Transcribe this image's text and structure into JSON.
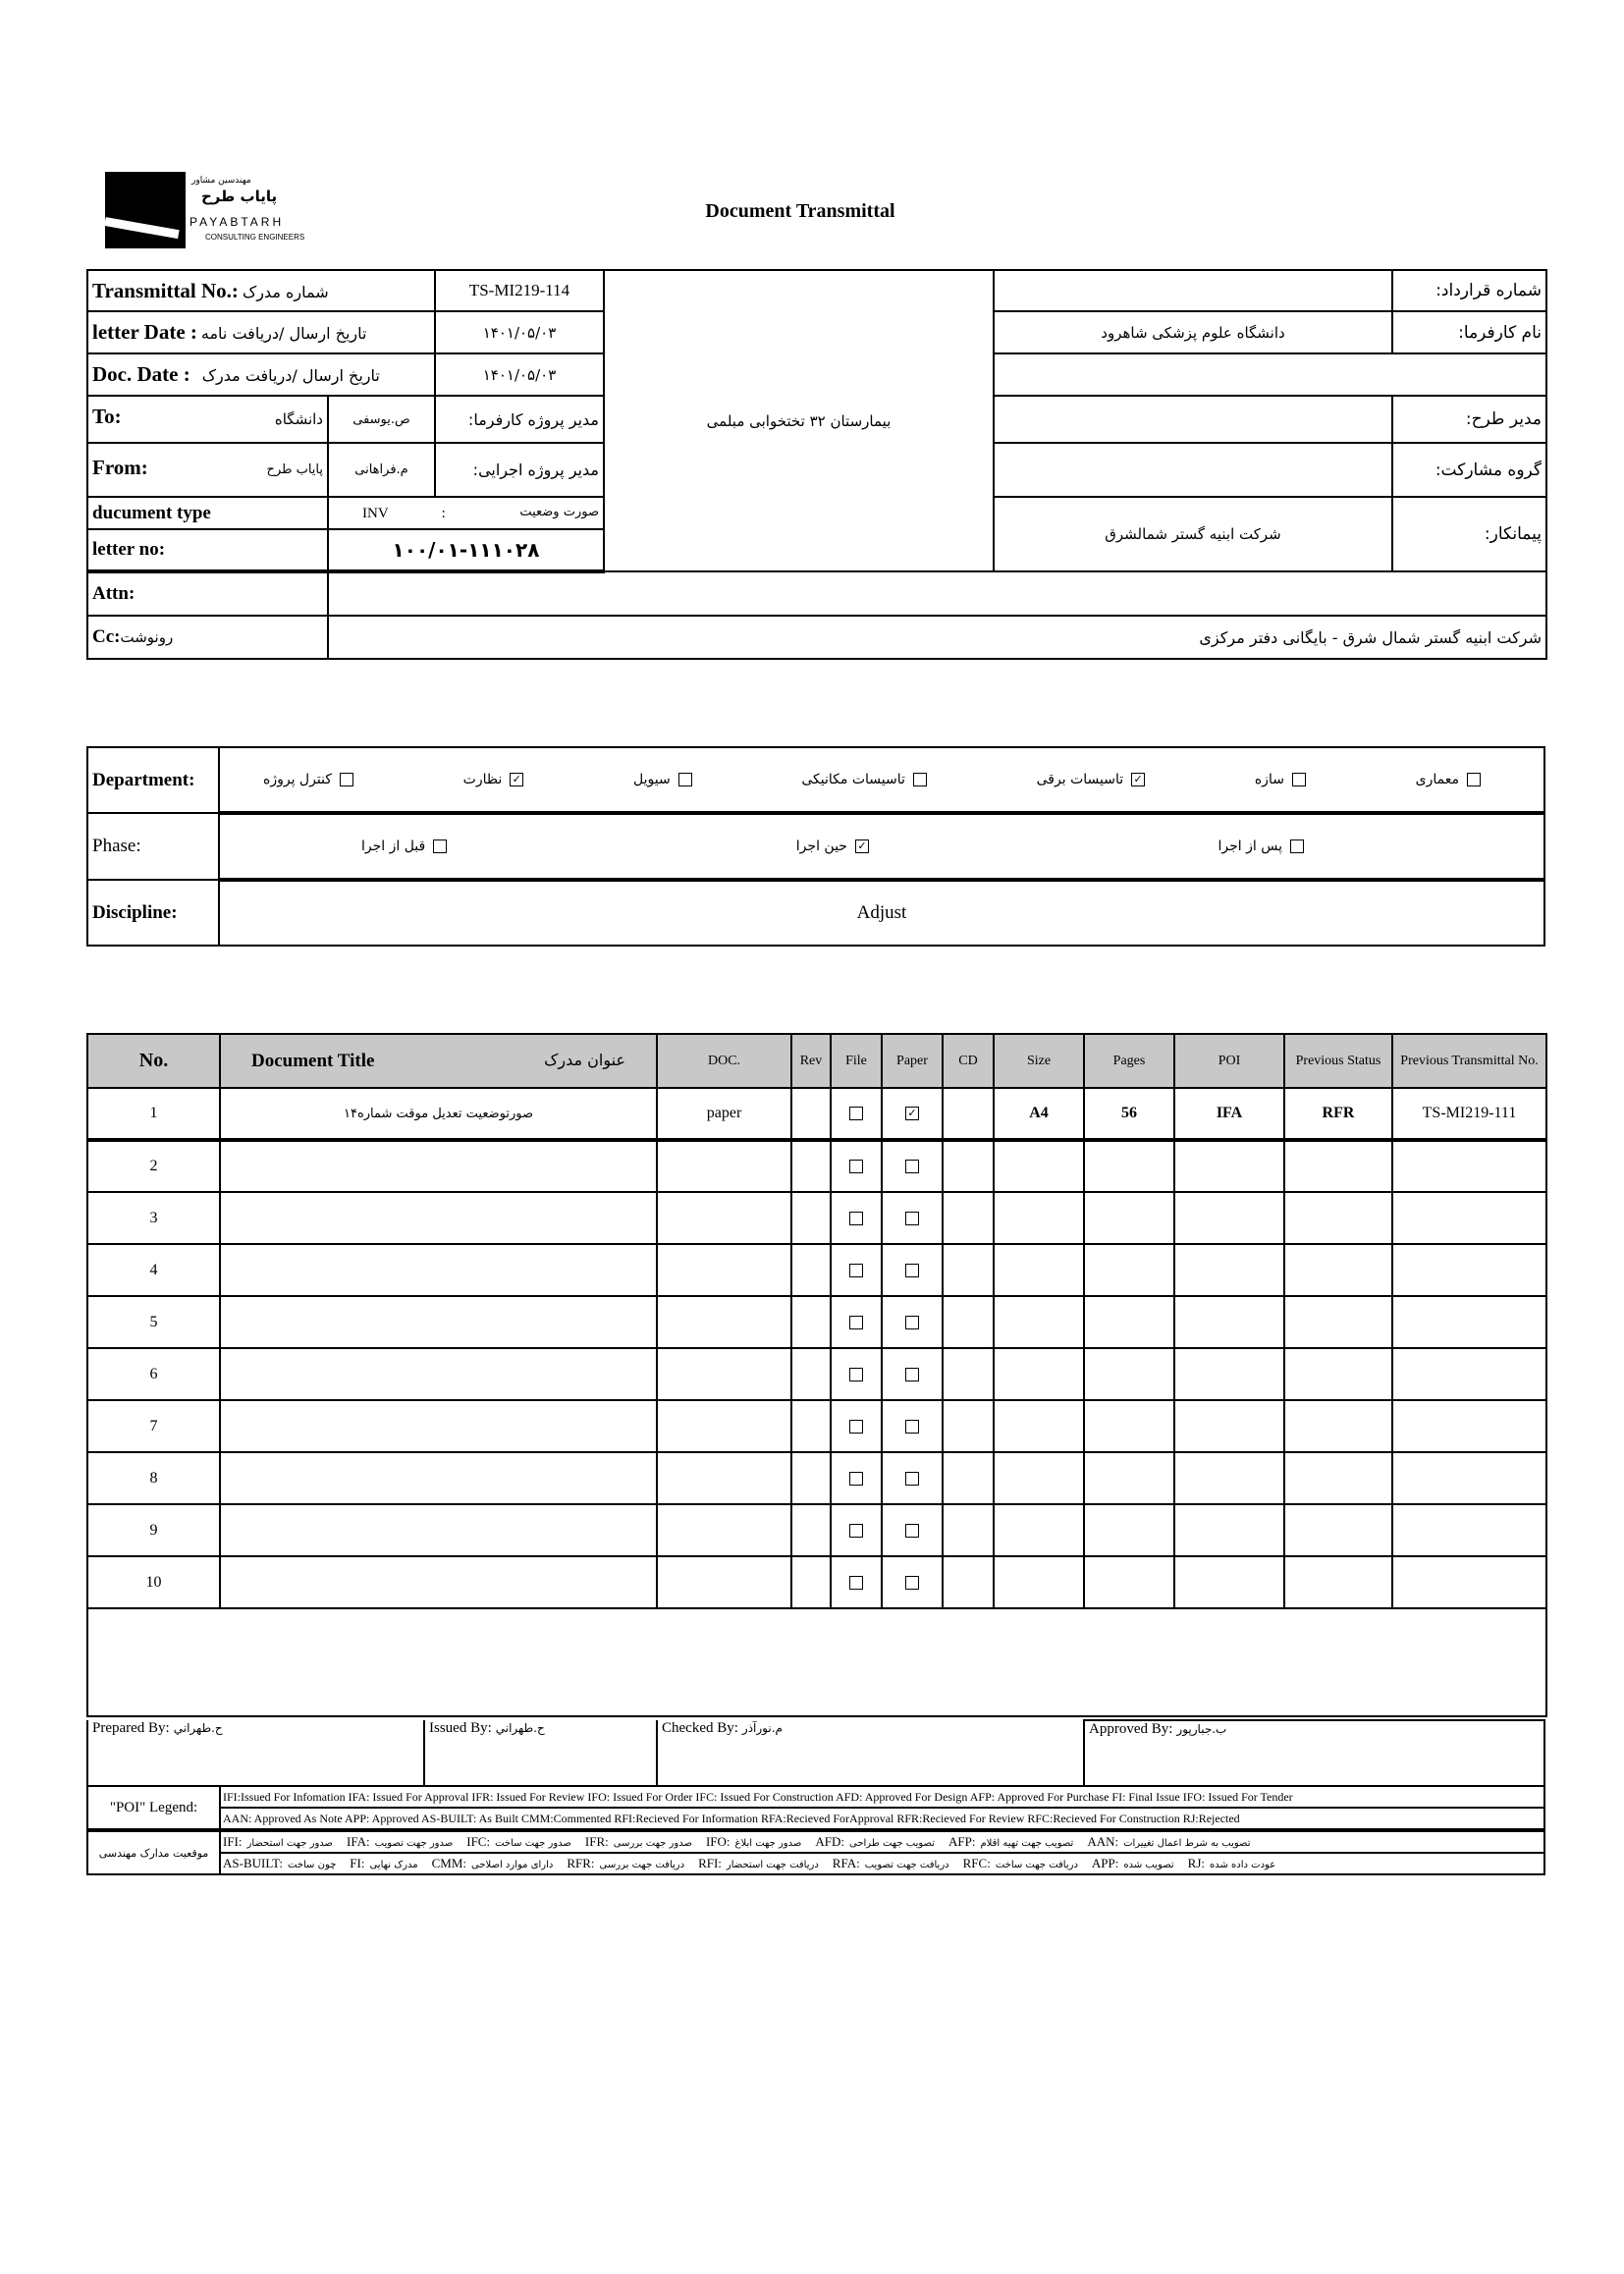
{
  "header": {
    "logo_fa_top": "مهندسین مشاور",
    "logo_fa": "پایاب طرح",
    "logo_en": "PAYABTARH",
    "logo_sub": "CONSULTING ENGINEERS",
    "title": "Document Transmittal"
  },
  "info": {
    "transmittal_label": "Transmittal No.:",
    "transmittal_label_fa": "شماره مدرک",
    "transmittal_value": "TS-MI219-114",
    "letter_date_label": "letter Date :",
    "letter_date_label_fa": "تاریخ ارسال /دریافت نامه",
    "letter_date_value": "۱۴۰۱/۰۵/۰۳",
    "doc_date_label": "Doc. Date :",
    "doc_date_label_fa": "تاریخ ارسال /دریافت مدرک",
    "doc_date_value": "۱۴۰۱/۰۵/۰۳",
    "to_label": "To:",
    "to_value": "دانشگاه",
    "to_person": "ص.یوسفی",
    "to_role": "مدیر پروژه کارفرما:",
    "from_label": "From:",
    "from_value": "پایاب طرح",
    "from_person": "م.فراهانی",
    "from_role": "مدیر پروژه اجرایی:",
    "doctype_label": "ducument type",
    "doctype_code": "INV",
    "doctype_sep": ":",
    "doctype_fa": "صورت وضعیت",
    "letter_no_label": "letter no:",
    "letter_no_value": "۱۰۰/۰۱-۱۱۱۰۲۸",
    "project": "بیمارستان ۳۲ تختخوابی مبلمی",
    "contract_label": "شماره قرارداد:",
    "contract_value": "",
    "employer_label": "نام کارفرما:",
    "employer_value": "دانشگاه علوم پزشکی شاهرود",
    "pm_label": "مدیر طرح:",
    "pm_value": "",
    "partner_label": "گروه مشارکت:",
    "partner_value": "",
    "contractor_label": "پیمانکار:",
    "contractor_value": "شرکت ابنیه گستر شمالشرق",
    "attn_label": "Attn:",
    "attn_value": "",
    "cc_label": "Cc:",
    "cc_label_fa": "رونوشت",
    "cc_value": "شرکت ابنیه گستر شمال شرق - بایگانی دفتر مرکزی"
  },
  "classification": {
    "department_label": "Department:",
    "departments": [
      {
        "label": "معماری",
        "checked": false
      },
      {
        "label": "سازه",
        "checked": false
      },
      {
        "label": "تاسیسات برقی",
        "checked": true
      },
      {
        "label": "تاسیسات مکانیکی",
        "checked": false
      },
      {
        "label": "سیویل",
        "checked": false
      },
      {
        "label": "نظارت",
        "checked": true
      },
      {
        "label": "کنترل پروژه",
        "checked": false
      }
    ],
    "phase_label": "Phase:",
    "phases": [
      {
        "label": "پس از اجرا",
        "checked": false
      },
      {
        "label": "حین اجرا",
        "checked": true
      },
      {
        "label": "قبل از اجرا",
        "checked": false
      }
    ],
    "discipline_label": "Discipline:",
    "discipline_value": "Adjust"
  },
  "documents": {
    "headers": {
      "no": "No.",
      "title_en": "Document Title",
      "title_fa": "عنوان مدرک",
      "doc": "DOC.",
      "rev": "Rev",
      "file": "File",
      "paper": "Paper",
      "cd": "CD",
      "size": "Size",
      "pages": "Pages",
      "poi": "POI",
      "prev_status": "Previous Status",
      "prev_transmittal": "Previous Transmittal No."
    },
    "rows": [
      {
        "no": "1",
        "title": "صورتوضعیت تعدیل موقت شماره۱۴",
        "doc": "paper",
        "rev": "",
        "file": false,
        "paper": true,
        "cd": "",
        "size": "A4",
        "pages": "56",
        "poi": "IFA",
        "prev_status": "RFR",
        "prev_transmittal": "TS-MI219-111"
      },
      {
        "no": "2",
        "title": "",
        "doc": "",
        "rev": "",
        "file": false,
        "paper": false,
        "cd": "",
        "size": "",
        "pages": "",
        "poi": "",
        "prev_status": "",
        "prev_transmittal": ""
      },
      {
        "no": "3",
        "title": "",
        "doc": "",
        "rev": "",
        "file": false,
        "paper": false,
        "cd": "",
        "size": "",
        "pages": "",
        "poi": "",
        "prev_status": "",
        "prev_transmittal": ""
      },
      {
        "no": "4",
        "title": "",
        "doc": "",
        "rev": "",
        "file": false,
        "paper": false,
        "cd": "",
        "size": "",
        "pages": "",
        "poi": "",
        "prev_status": "",
        "prev_transmittal": ""
      },
      {
        "no": "5",
        "title": "",
        "doc": "",
        "rev": "",
        "file": false,
        "paper": false,
        "cd": "",
        "size": "",
        "pages": "",
        "poi": "",
        "prev_status": "",
        "prev_transmittal": ""
      },
      {
        "no": "6",
        "title": "",
        "doc": "",
        "rev": "",
        "file": false,
        "paper": false,
        "cd": "",
        "size": "",
        "pages": "",
        "poi": "",
        "prev_status": "",
        "prev_transmittal": ""
      },
      {
        "no": "7",
        "title": "",
        "doc": "",
        "rev": "",
        "file": false,
        "paper": false,
        "cd": "",
        "size": "",
        "pages": "",
        "poi": "",
        "prev_status": "",
        "prev_transmittal": ""
      },
      {
        "no": "8",
        "title": "",
        "doc": "",
        "rev": "",
        "file": false,
        "paper": false,
        "cd": "",
        "size": "",
        "pages": "",
        "poi": "",
        "prev_status": "",
        "prev_transmittal": ""
      },
      {
        "no": "9",
        "title": "",
        "doc": "",
        "rev": "",
        "file": false,
        "paper": false,
        "cd": "",
        "size": "",
        "pages": "",
        "poi": "",
        "prev_status": "",
        "prev_transmittal": ""
      },
      {
        "no": "10",
        "title": "",
        "doc": "",
        "rev": "",
        "file": false,
        "paper": false,
        "cd": "",
        "size": "",
        "pages": "",
        "poi": "",
        "prev_status": "",
        "prev_transmittal": ""
      }
    ]
  },
  "signatures": [
    {
      "label": "Prepared By:",
      "name": "ح.طهراني"
    },
    {
      "label": "Issued By:",
      "name": "ح.طهراني"
    },
    {
      "label": "Checked By:",
      "name": "م.نورآذر"
    },
    {
      "label": "Approved By:",
      "name": "ب.جبارپور"
    }
  ],
  "legend": {
    "poi_label": "\"POI\" Legend:",
    "en_line1": "IFI:Issued For Infomation  IFA: Issued For Approval  IFR: Issued For Review   IFO: Issued For Order  IFC: Issued For Construction  AFD: Approved For Design  AFP: Approved For Purchase   FI: Final Issue   IFO: Issued For Tender",
    "en_line2": "AAN: Approved As Note   APP: Approved  AS-BUILT: As Built CMM:Commented  RFI:Recieved For Information   RFA:Recieved ForApproval   RFR:Recieved For Review  RFC:Recieved For Construction  RJ:Rejected",
    "fa_label": "موقعیت مدارک مهندسی",
    "fa_line1": [
      {
        "code": "IFI:",
        "fa": "صدور جهت استحضار"
      },
      {
        "code": "IFA:",
        "fa": "صدور جهت تصویب"
      },
      {
        "code": "IFC:",
        "fa": "صدور جهت ساخت"
      },
      {
        "code": "IFR:",
        "fa": "صدور جهت بررسی"
      },
      {
        "code": "IFO:",
        "fa": "صدور جهت ابلاغ"
      },
      {
        "code": "AFD:",
        "fa": "تصویب جهت طراحی"
      },
      {
        "code": "AFP:",
        "fa": "تصویب جهت تهیه اقلام"
      },
      {
        "code": "AAN:",
        "fa": "تصویب به شرط اعمال تغییرات"
      }
    ],
    "fa_line2": [
      {
        "code": "AS-BUILT:",
        "fa": "چون ساخت"
      },
      {
        "code": "FI:",
        "fa": "مدرک نهایی"
      },
      {
        "code": "CMM:",
        "fa": "دارای موارد اصلاحی"
      },
      {
        "code": "RFR:",
        "fa": "دریافت جهت بررسی"
      },
      {
        "code": "RFI:",
        "fa": "دریافت جهت استحضار"
      },
      {
        "code": "RFA:",
        "fa": "دریافت جهت تصویب"
      },
      {
        "code": "RFC:",
        "fa": "دریافت جهت ساخت"
      },
      {
        "code": "APP:",
        "fa": "تصویب شده"
      },
      {
        "code": "RJ:",
        "fa": "عودت داده شده"
      }
    ]
  }
}
